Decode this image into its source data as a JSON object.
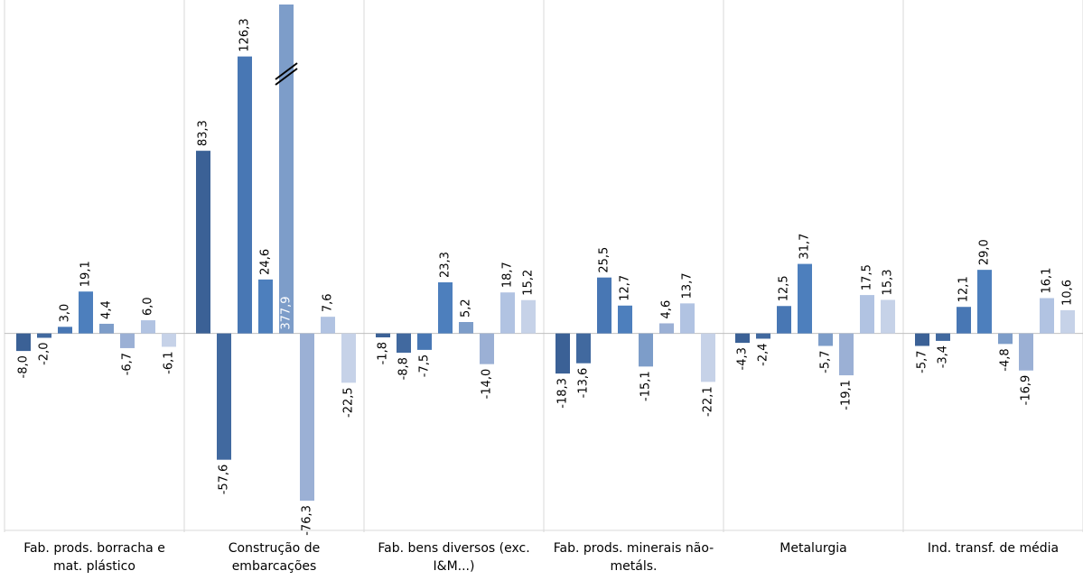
{
  "chart_data": {
    "type": "bar",
    "categories": [
      "Fab. prods. borracha e mat. plástico",
      "Construção de embarcações",
      "Fab. bens diversos (exc. I&M...)",
      "Fab. prods. minerais não-metáls.",
      "Metalurgia",
      "Ind. transf. de média"
    ],
    "series": [
      {
        "color": "#3b6196",
        "values": [
          -8.0,
          83.3,
          -1.8,
          -18.3,
          -4.3,
          -5.7
        ],
        "value_labels": [
          "-8,0",
          "83,3",
          "-1,8",
          "-18,3",
          "-4,3",
          "-5,7"
        ]
      },
      {
        "color": "#41699f",
        "values": [
          -2.0,
          -57.6,
          -8.8,
          -13.6,
          -2.4,
          -3.4
        ],
        "value_labels": [
          "-2,0",
          "-57,6",
          "-8,8",
          "-13,6",
          "-2,4",
          "-3,4"
        ]
      },
      {
        "color": "#4877b4",
        "values": [
          3.0,
          126.3,
          -7.5,
          25.5,
          12.5,
          12.1
        ],
        "value_labels": [
          "3,0",
          "126,3",
          "-7,5",
          "25,5",
          "12,5",
          "12,1"
        ]
      },
      {
        "color": "#4d7fbd",
        "values": [
          19.1,
          24.6,
          23.3,
          12.7,
          31.7,
          29.0
        ],
        "value_labels": [
          "19,1",
          "24,6",
          "23,3",
          "12,7",
          "31,7",
          "29,0"
        ]
      },
      {
        "color": "#7d9dc9",
        "values": [
          4.4,
          377.9,
          5.2,
          -15.1,
          -5.7,
          -4.8
        ],
        "value_labels": [
          "4,4",
          "377,9",
          "5,2",
          "-15,1",
          "-5,7",
          "-4,8"
        ]
      },
      {
        "color": "#9bb0d5",
        "values": [
          -6.7,
          -76.3,
          -14.0,
          4.6,
          -19.1,
          -16.9
        ],
        "value_labels": [
          "-6,7",
          "-76,3",
          "-14,0",
          "4,6",
          "-19,1",
          "-16,9"
        ]
      },
      {
        "color": "#b1c3e2",
        "values": [
          6.0,
          7.6,
          18.7,
          13.7,
          17.5,
          16.1
        ],
        "value_labels": [
          "6,0",
          "7,6",
          "18,7",
          "13,7",
          "17,5",
          "16,1"
        ]
      },
      {
        "color": "#c6d2e8",
        "values": [
          -6.1,
          -22.5,
          15.2,
          -22.1,
          15.3,
          10.6
        ],
        "value_labels": [
          "-6,1",
          "-22,5",
          "15,2",
          "-22,1",
          "15,3",
          "10,6"
        ]
      }
    ],
    "ylim": [
      -89,
      150
    ]
  }
}
